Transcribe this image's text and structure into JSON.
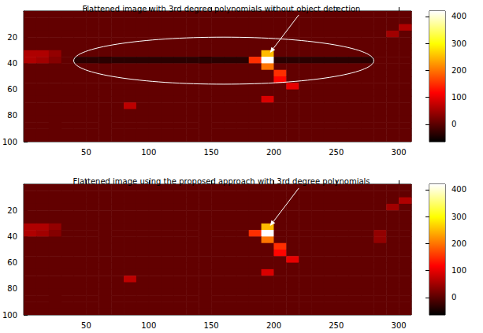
{
  "chart_data": [
    {
      "type": "heatmap",
      "title": "Flattened image with 3rd degree polynomials without object detection",
      "xlim": [
        0,
        310
      ],
      "ylim": [
        0,
        100
      ],
      "xticks": [
        50,
        100,
        150,
        200,
        250,
        300
      ],
      "yticks": [
        20,
        40,
        60,
        80,
        100
      ],
      "x": [
        5,
        15,
        25,
        35,
        45,
        55,
        65,
        75,
        85,
        95,
        105,
        115,
        125,
        135,
        145,
        155,
        165,
        175,
        185,
        195,
        205,
        215,
        225,
        235,
        245,
        255,
        265,
        275,
        285,
        295,
        305
      ],
      "y": [
        2.5,
        7.5,
        12.5,
        17.5,
        22.5,
        27.5,
        32.5,
        37.5,
        42.5,
        47.5,
        52.5,
        57.5,
        62.5,
        67.5,
        72.5,
        77.5,
        82.5,
        87.5,
        92.5,
        97.5
      ],
      "cells": [
        [
          5,
          5,
          5,
          5,
          5,
          5,
          5,
          5,
          5,
          5,
          5,
          5,
          5,
          5,
          5,
          5,
          5,
          5,
          5,
          5,
          5,
          5,
          5,
          5,
          5,
          5,
          5,
          5,
          5,
          5,
          5
        ],
        [
          5,
          5,
          5,
          5,
          5,
          5,
          5,
          5,
          5,
          5,
          5,
          5,
          5,
          5,
          5,
          5,
          5,
          5,
          5,
          5,
          5,
          5,
          5,
          5,
          5,
          5,
          5,
          5,
          5,
          5,
          5
        ],
        [
          5,
          5,
          5,
          5,
          5,
          5,
          5,
          5,
          5,
          5,
          5,
          5,
          5,
          5,
          5,
          5,
          5,
          5,
          5,
          5,
          5,
          5,
          5,
          5,
          5,
          5,
          5,
          5,
          5,
          5,
          60
        ],
        [
          5,
          5,
          5,
          5,
          5,
          5,
          5,
          5,
          5,
          5,
          5,
          5,
          5,
          5,
          5,
          5,
          5,
          5,
          5,
          5,
          5,
          5,
          5,
          5,
          5,
          5,
          5,
          5,
          5,
          50,
          5
        ],
        [
          5,
          5,
          5,
          5,
          5,
          5,
          5,
          5,
          5,
          5,
          5,
          5,
          5,
          5,
          5,
          5,
          5,
          5,
          5,
          5,
          5,
          5,
          5,
          5,
          5,
          5,
          5,
          5,
          5,
          5,
          5
        ],
        [
          5,
          5,
          5,
          5,
          5,
          5,
          5,
          5,
          5,
          5,
          5,
          5,
          5,
          5,
          5,
          5,
          5,
          5,
          5,
          5,
          5,
          5,
          5,
          5,
          5,
          5,
          5,
          5,
          5,
          5,
          5
        ],
        [
          60,
          60,
          40,
          5,
          5,
          5,
          5,
          5,
          5,
          5,
          5,
          5,
          5,
          5,
          5,
          5,
          5,
          5,
          5,
          250,
          5,
          5,
          5,
          5,
          5,
          5,
          5,
          5,
          5,
          5,
          5
        ],
        [
          60,
          50,
          30,
          5,
          -35,
          -35,
          -35,
          -35,
          -35,
          -35,
          -35,
          -35,
          -35,
          -35,
          -35,
          -35,
          -35,
          -35,
          150,
          420,
          -35,
          -35,
          -35,
          -35,
          -35,
          -35,
          -35,
          -35,
          5,
          5,
          5
        ],
        [
          5,
          5,
          5,
          5,
          5,
          5,
          5,
          5,
          5,
          5,
          5,
          5,
          5,
          5,
          5,
          5,
          5,
          5,
          5,
          200,
          5,
          5,
          5,
          5,
          5,
          5,
          5,
          5,
          5,
          5,
          5
        ],
        [
          5,
          5,
          5,
          5,
          5,
          5,
          5,
          5,
          5,
          5,
          5,
          5,
          5,
          5,
          5,
          5,
          5,
          5,
          5,
          5,
          150,
          5,
          5,
          5,
          5,
          5,
          5,
          5,
          5,
          5,
          5
        ],
        [
          5,
          5,
          5,
          5,
          5,
          5,
          5,
          5,
          5,
          5,
          5,
          5,
          5,
          5,
          5,
          5,
          5,
          5,
          5,
          5,
          120,
          5,
          5,
          5,
          5,
          5,
          5,
          5,
          5,
          5,
          5
        ],
        [
          5,
          5,
          5,
          5,
          5,
          5,
          5,
          5,
          5,
          5,
          5,
          5,
          5,
          5,
          5,
          5,
          5,
          5,
          5,
          5,
          5,
          100,
          5,
          5,
          5,
          5,
          5,
          5,
          5,
          5,
          5
        ],
        [
          5,
          5,
          5,
          5,
          5,
          5,
          5,
          5,
          5,
          5,
          5,
          5,
          5,
          5,
          5,
          5,
          5,
          5,
          5,
          5,
          5,
          5,
          5,
          5,
          5,
          5,
          5,
          5,
          5,
          5,
          5
        ],
        [
          5,
          5,
          5,
          5,
          5,
          5,
          5,
          5,
          5,
          5,
          5,
          5,
          5,
          5,
          5,
          5,
          5,
          5,
          5,
          90,
          5,
          5,
          5,
          5,
          5,
          5,
          5,
          5,
          5,
          5,
          5
        ],
        [
          5,
          5,
          5,
          5,
          5,
          5,
          5,
          5,
          70,
          5,
          5,
          5,
          5,
          5,
          5,
          5,
          5,
          5,
          5,
          5,
          5,
          5,
          5,
          5,
          5,
          5,
          5,
          5,
          5,
          5,
          5
        ],
        [
          5,
          5,
          5,
          5,
          5,
          5,
          5,
          5,
          5,
          5,
          5,
          5,
          5,
          5,
          5,
          5,
          5,
          5,
          5,
          5,
          5,
          5,
          5,
          5,
          5,
          5,
          5,
          5,
          5,
          5,
          5
        ],
        [
          5,
          5,
          5,
          5,
          5,
          5,
          5,
          5,
          5,
          5,
          5,
          5,
          5,
          5,
          5,
          5,
          5,
          5,
          5,
          5,
          5,
          5,
          5,
          5,
          5,
          5,
          5,
          5,
          5,
          5,
          5
        ],
        [
          5,
          5,
          5,
          5,
          5,
          5,
          5,
          5,
          5,
          5,
          5,
          5,
          5,
          5,
          5,
          5,
          5,
          5,
          5,
          5,
          5,
          5,
          5,
          5,
          5,
          5,
          5,
          5,
          5,
          5,
          5
        ],
        [
          5,
          5,
          5,
          5,
          5,
          5,
          5,
          5,
          5,
          5,
          5,
          5,
          5,
          5,
          5,
          5,
          5,
          5,
          5,
          5,
          5,
          5,
          5,
          5,
          5,
          5,
          5,
          5,
          5,
          5,
          5
        ],
        [
          5,
          5,
          5,
          5,
          5,
          5,
          5,
          5,
          5,
          5,
          5,
          5,
          5,
          5,
          5,
          5,
          5,
          5,
          5,
          5,
          5,
          5,
          5,
          5,
          5,
          5,
          5,
          5,
          5,
          5,
          5
        ]
      ],
      "colorbar": {
        "lim": [
          -65,
          420
        ],
        "ticks": [
          0,
          100,
          200,
          300,
          400
        ]
      }
    },
    {
      "type": "heatmap",
      "title": "Flattened image using the proposed approach with 3rd degree polynomials",
      "xlim": [
        0,
        310
      ],
      "ylim": [
        0,
        100
      ],
      "xticks": [
        50,
        100,
        150,
        200,
        250,
        300
      ],
      "yticks": [
        20,
        40,
        60,
        80,
        100
      ],
      "x": [
        5,
        15,
        25,
        35,
        45,
        55,
        65,
        75,
        85,
        95,
        105,
        115,
        125,
        135,
        145,
        155,
        165,
        175,
        185,
        195,
        205,
        215,
        225,
        235,
        245,
        255,
        265,
        275,
        285,
        295,
        305
      ],
      "y": [
        2.5,
        7.5,
        12.5,
        17.5,
        22.5,
        27.5,
        32.5,
        37.5,
        42.5,
        47.5,
        52.5,
        57.5,
        62.5,
        67.5,
        72.5,
        77.5,
        82.5,
        87.5,
        92.5,
        97.5
      ],
      "cells": [
        [
          5,
          5,
          5,
          5,
          5,
          5,
          5,
          5,
          5,
          5,
          5,
          5,
          5,
          5,
          5,
          5,
          5,
          5,
          5,
          5,
          5,
          5,
          5,
          5,
          5,
          5,
          5,
          5,
          5,
          5,
          5
        ],
        [
          5,
          5,
          5,
          5,
          5,
          5,
          5,
          5,
          5,
          5,
          5,
          5,
          5,
          5,
          5,
          5,
          5,
          5,
          5,
          5,
          5,
          5,
          5,
          5,
          5,
          5,
          5,
          5,
          5,
          5,
          5
        ],
        [
          5,
          5,
          5,
          5,
          5,
          5,
          5,
          5,
          5,
          5,
          5,
          5,
          5,
          5,
          5,
          5,
          5,
          5,
          5,
          5,
          5,
          5,
          5,
          5,
          5,
          5,
          5,
          5,
          5,
          5,
          60
        ],
        [
          5,
          5,
          5,
          5,
          5,
          5,
          5,
          5,
          5,
          5,
          5,
          5,
          5,
          5,
          5,
          5,
          5,
          5,
          5,
          5,
          5,
          5,
          5,
          5,
          5,
          5,
          5,
          5,
          5,
          50,
          5
        ],
        [
          5,
          5,
          5,
          5,
          5,
          5,
          5,
          5,
          5,
          5,
          5,
          5,
          5,
          5,
          5,
          5,
          5,
          5,
          5,
          5,
          5,
          5,
          5,
          5,
          5,
          5,
          5,
          5,
          5,
          5,
          5
        ],
        [
          5,
          5,
          5,
          5,
          5,
          5,
          5,
          5,
          5,
          5,
          5,
          5,
          5,
          5,
          5,
          5,
          5,
          5,
          5,
          5,
          5,
          5,
          5,
          5,
          5,
          5,
          5,
          5,
          5,
          5,
          5
        ],
        [
          60,
          60,
          40,
          5,
          5,
          5,
          5,
          5,
          5,
          5,
          5,
          5,
          5,
          5,
          5,
          5,
          5,
          5,
          5,
          250,
          5,
          5,
          5,
          5,
          5,
          5,
          5,
          5,
          5,
          5,
          5
        ],
        [
          60,
          50,
          30,
          5,
          5,
          5,
          5,
          5,
          5,
          5,
          5,
          5,
          5,
          5,
          5,
          5,
          5,
          5,
          150,
          420,
          5,
          5,
          5,
          5,
          5,
          5,
          5,
          5,
          40,
          5,
          5
        ],
        [
          5,
          5,
          5,
          5,
          5,
          5,
          5,
          5,
          5,
          5,
          5,
          5,
          5,
          5,
          5,
          5,
          5,
          5,
          5,
          200,
          5,
          5,
          5,
          5,
          5,
          5,
          5,
          5,
          40,
          5,
          5
        ],
        [
          5,
          5,
          5,
          5,
          5,
          5,
          5,
          5,
          5,
          5,
          5,
          5,
          5,
          5,
          5,
          5,
          5,
          5,
          5,
          5,
          150,
          5,
          5,
          5,
          5,
          5,
          5,
          5,
          5,
          5,
          5
        ],
        [
          5,
          5,
          5,
          5,
          5,
          5,
          5,
          5,
          5,
          5,
          5,
          5,
          5,
          5,
          5,
          5,
          5,
          5,
          5,
          5,
          120,
          5,
          5,
          5,
          5,
          5,
          5,
          5,
          5,
          5,
          5
        ],
        [
          5,
          5,
          5,
          5,
          5,
          5,
          5,
          5,
          5,
          5,
          5,
          5,
          5,
          5,
          5,
          5,
          5,
          5,
          5,
          5,
          5,
          100,
          5,
          5,
          5,
          5,
          5,
          5,
          5,
          5,
          5
        ],
        [
          5,
          5,
          5,
          5,
          5,
          5,
          5,
          5,
          5,
          5,
          5,
          5,
          5,
          5,
          5,
          5,
          5,
          5,
          5,
          5,
          5,
          5,
          5,
          5,
          5,
          5,
          5,
          5,
          5,
          5,
          5
        ],
        [
          5,
          5,
          5,
          5,
          5,
          5,
          5,
          5,
          5,
          5,
          5,
          5,
          5,
          5,
          5,
          5,
          5,
          5,
          5,
          90,
          5,
          5,
          5,
          5,
          5,
          5,
          5,
          5,
          5,
          5,
          5
        ],
        [
          5,
          5,
          5,
          5,
          5,
          5,
          5,
          5,
          70,
          5,
          5,
          5,
          5,
          5,
          5,
          5,
          5,
          5,
          5,
          5,
          5,
          5,
          5,
          5,
          5,
          5,
          5,
          5,
          5,
          5,
          5
        ],
        [
          5,
          5,
          5,
          5,
          5,
          5,
          5,
          5,
          5,
          5,
          5,
          5,
          5,
          5,
          5,
          5,
          5,
          5,
          5,
          5,
          5,
          5,
          5,
          5,
          5,
          5,
          5,
          5,
          5,
          5,
          5
        ],
        [
          5,
          5,
          5,
          5,
          5,
          5,
          5,
          5,
          5,
          5,
          5,
          5,
          5,
          5,
          5,
          5,
          5,
          5,
          5,
          5,
          5,
          5,
          5,
          5,
          5,
          5,
          5,
          5,
          5,
          5,
          5
        ],
        [
          5,
          5,
          5,
          5,
          5,
          5,
          5,
          5,
          5,
          5,
          5,
          5,
          5,
          5,
          5,
          5,
          5,
          5,
          5,
          5,
          5,
          5,
          5,
          5,
          5,
          5,
          5,
          5,
          5,
          5,
          5
        ],
        [
          5,
          5,
          5,
          5,
          5,
          5,
          5,
          5,
          5,
          5,
          5,
          5,
          5,
          5,
          5,
          5,
          5,
          5,
          5,
          5,
          5,
          5,
          5,
          5,
          5,
          5,
          5,
          5,
          5,
          5,
          5
        ],
        [
          5,
          5,
          5,
          5,
          5,
          5,
          5,
          5,
          5,
          5,
          5,
          5,
          5,
          5,
          5,
          5,
          5,
          5,
          5,
          5,
          5,
          5,
          5,
          5,
          5,
          5,
          5,
          5,
          5,
          5,
          5
        ]
      ],
      "colorbar": {
        "lim": [
          -65,
          420
        ],
        "ticks": [
          0,
          100,
          200,
          300,
          400
        ]
      }
    }
  ]
}
